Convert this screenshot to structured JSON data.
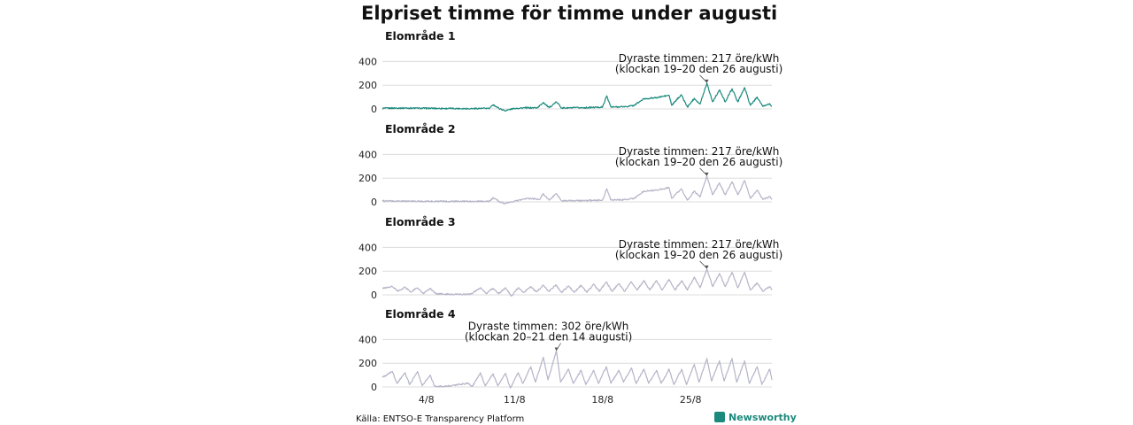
{
  "title": "Elpriset timme för timme under augusti",
  "source": "Källa: ENTSO-E Transparency Platform",
  "brand": "Newsworthy",
  "colors": {
    "highlight": "#1b8a7d",
    "muted": "#b4b4c8",
    "grid": "#dcdcdc",
    "annotation_line": "#555555"
  },
  "chart_data": [
    {
      "type": "line",
      "title": "Elområde 1",
      "color": "#1b8a7d",
      "x_ticks": [
        "4/8",
        "11/8",
        "18/8",
        "25/8"
      ],
      "y_ticks": [
        0,
        200,
        400
      ],
      "ylim": [
        -30,
        420
      ],
      "xlim": [
        "2022-08-01 00:00",
        "2022-08-31 23:00"
      ],
      "resolution": "hourly",
      "annotation": {
        "line1": "Dyraste timmen: 217 öre/kWh",
        "line2": "(klockan 19–20 den 26 augusti)",
        "x": "2022-08-26 19:00",
        "y": 217
      },
      "keypoints": [
        [
          "2022-08-01 00:00",
          5
        ],
        [
          "2022-08-02 12:00",
          8
        ],
        [
          "2022-08-04 00:00",
          6
        ],
        [
          "2022-08-06 00:00",
          4
        ],
        [
          "2022-08-08 00:00",
          3
        ],
        [
          "2022-08-09 12:00",
          5
        ],
        [
          "2022-08-09 20:00",
          35
        ],
        [
          "2022-08-10 06:00",
          5
        ],
        [
          "2022-08-10 18:00",
          -15
        ],
        [
          "2022-08-11 12:00",
          5
        ],
        [
          "2022-08-12 00:00",
          8
        ],
        [
          "2022-08-13 08:00",
          10
        ],
        [
          "2022-08-13 19:00",
          55
        ],
        [
          "2022-08-14 06:00",
          10
        ],
        [
          "2022-08-14 20:00",
          60
        ],
        [
          "2022-08-15 06:00",
          8
        ],
        [
          "2022-08-17 00:00",
          10
        ],
        [
          "2022-08-18 12:00",
          15
        ],
        [
          "2022-08-18 20:00",
          110
        ],
        [
          "2022-08-19 04:00",
          15
        ],
        [
          "2022-08-20 12:00",
          20
        ],
        [
          "2022-08-21 00:00",
          30
        ],
        [
          "2022-08-21 19:00",
          85
        ],
        [
          "2022-08-22 19:00",
          95
        ],
        [
          "2022-08-23 19:00",
          115
        ],
        [
          "2022-08-24 00:00",
          30
        ],
        [
          "2022-08-24 18:00",
          120
        ],
        [
          "2022-08-25 06:00",
          15
        ],
        [
          "2022-08-25 19:00",
          90
        ],
        [
          "2022-08-26 06:00",
          40
        ],
        [
          "2022-08-26 19:00",
          217
        ],
        [
          "2022-08-27 06:00",
          60
        ],
        [
          "2022-08-27 19:00",
          160
        ],
        [
          "2022-08-28 06:00",
          60
        ],
        [
          "2022-08-28 19:00",
          170
        ],
        [
          "2022-08-29 06:00",
          60
        ],
        [
          "2022-08-29 19:00",
          180
        ],
        [
          "2022-08-30 06:00",
          30
        ],
        [
          "2022-08-30 19:00",
          100
        ],
        [
          "2022-08-31 06:00",
          20
        ],
        [
          "2022-08-31 19:00",
          45
        ],
        [
          "2022-08-31 23:00",
          20
        ]
      ]
    },
    {
      "type": "line",
      "title": "Elområde 2",
      "color": "#b4b4c8",
      "x_ticks": [
        "4/8",
        "11/8",
        "18/8",
        "25/8"
      ],
      "y_ticks": [
        0,
        200,
        400
      ],
      "ylim": [
        -30,
        420
      ],
      "xlim": [
        "2022-08-01 00:00",
        "2022-08-31 23:00"
      ],
      "resolution": "hourly",
      "annotation": {
        "line1": "Dyraste timmen: 217 öre/kWh",
        "line2": "(klockan 19–20 den 26 augusti)",
        "x": "2022-08-26 19:00",
        "y": 217
      },
      "keypoints": [
        [
          "2022-08-01 00:00",
          8
        ],
        [
          "2022-08-03 00:00",
          6
        ],
        [
          "2022-08-05 00:00",
          5
        ],
        [
          "2022-08-07 00:00",
          4
        ],
        [
          "2022-08-09 12:00",
          5
        ],
        [
          "2022-08-09 20:00",
          35
        ],
        [
          "2022-08-10 06:00",
          5
        ],
        [
          "2022-08-10 18:00",
          -15
        ],
        [
          "2022-08-11 12:00",
          5
        ],
        [
          "2022-08-12 12:00",
          30
        ],
        [
          "2022-08-13 12:00",
          20
        ],
        [
          "2022-08-13 19:00",
          70
        ],
        [
          "2022-08-14 06:00",
          15
        ],
        [
          "2022-08-14 20:00",
          70
        ],
        [
          "2022-08-15 06:00",
          10
        ],
        [
          "2022-08-17 00:00",
          10
        ],
        [
          "2022-08-18 12:00",
          15
        ],
        [
          "2022-08-18 20:00",
          110
        ],
        [
          "2022-08-19 04:00",
          15
        ],
        [
          "2022-08-20 12:00",
          20
        ],
        [
          "2022-08-21 00:00",
          30
        ],
        [
          "2022-08-21 19:00",
          90
        ],
        [
          "2022-08-22 19:00",
          100
        ],
        [
          "2022-08-23 19:00",
          120
        ],
        [
          "2022-08-24 00:00",
          30
        ],
        [
          "2022-08-24 18:00",
          110
        ],
        [
          "2022-08-25 06:00",
          15
        ],
        [
          "2022-08-25 19:00",
          90
        ],
        [
          "2022-08-26 06:00",
          40
        ],
        [
          "2022-08-26 19:00",
          217
        ],
        [
          "2022-08-27 06:00",
          60
        ],
        [
          "2022-08-27 19:00",
          160
        ],
        [
          "2022-08-28 06:00",
          60
        ],
        [
          "2022-08-28 19:00",
          170
        ],
        [
          "2022-08-29 06:00",
          60
        ],
        [
          "2022-08-29 19:00",
          180
        ],
        [
          "2022-08-30 06:00",
          30
        ],
        [
          "2022-08-30 19:00",
          100
        ],
        [
          "2022-08-31 06:00",
          20
        ],
        [
          "2022-08-31 19:00",
          45
        ],
        [
          "2022-08-31 23:00",
          20
        ]
      ]
    },
    {
      "type": "line",
      "title": "Elområde 3",
      "color": "#b4b4c8",
      "x_ticks": [
        "4/8",
        "11/8",
        "18/8",
        "25/8"
      ],
      "y_ticks": [
        0,
        200,
        400
      ],
      "ylim": [
        -30,
        420
      ],
      "xlim": [
        "2022-08-01 00:00",
        "2022-08-31 23:00"
      ],
      "resolution": "hourly",
      "annotation": {
        "line1": "Dyraste timmen: 217 öre/kWh",
        "line2": "(klockan 19–20 den 26 augusti)",
        "x": "2022-08-26 19:00",
        "y": 217
      },
      "keypoints": [
        [
          "2022-08-01 00:00",
          55
        ],
        [
          "2022-08-01 19:00",
          70
        ],
        [
          "2022-08-02 06:00",
          30
        ],
        [
          "2022-08-02 19:00",
          65
        ],
        [
          "2022-08-03 06:00",
          25
        ],
        [
          "2022-08-03 19:00",
          60
        ],
        [
          "2022-08-04 06:00",
          10
        ],
        [
          "2022-08-04 19:00",
          55
        ],
        [
          "2022-08-05 06:00",
          10
        ],
        [
          "2022-08-06 00:00",
          5
        ],
        [
          "2022-08-08 00:00",
          5
        ],
        [
          "2022-08-08 19:00",
          60
        ],
        [
          "2022-08-09 06:00",
          10
        ],
        [
          "2022-08-09 19:00",
          55
        ],
        [
          "2022-08-10 06:00",
          10
        ],
        [
          "2022-08-10 19:00",
          60
        ],
        [
          "2022-08-11 06:00",
          -10
        ],
        [
          "2022-08-11 19:00",
          60
        ],
        [
          "2022-08-12 06:00",
          20
        ],
        [
          "2022-08-12 19:00",
          70
        ],
        [
          "2022-08-13 06:00",
          25
        ],
        [
          "2022-08-13 19:00",
          80
        ],
        [
          "2022-08-14 06:00",
          30
        ],
        [
          "2022-08-14 19:00",
          85
        ],
        [
          "2022-08-15 06:00",
          20
        ],
        [
          "2022-08-15 19:00",
          75
        ],
        [
          "2022-08-16 06:00",
          20
        ],
        [
          "2022-08-16 19:00",
          80
        ],
        [
          "2022-08-17 06:00",
          20
        ],
        [
          "2022-08-17 19:00",
          90
        ],
        [
          "2022-08-18 06:00",
          30
        ],
        [
          "2022-08-18 19:00",
          110
        ],
        [
          "2022-08-19 06:00",
          30
        ],
        [
          "2022-08-19 19:00",
          95
        ],
        [
          "2022-08-20 06:00",
          30
        ],
        [
          "2022-08-20 19:00",
          110
        ],
        [
          "2022-08-21 06:00",
          40
        ],
        [
          "2022-08-21 19:00",
          120
        ],
        [
          "2022-08-22 06:00",
          40
        ],
        [
          "2022-08-22 19:00",
          120
        ],
        [
          "2022-08-23 06:00",
          40
        ],
        [
          "2022-08-23 19:00",
          130
        ],
        [
          "2022-08-24 06:00",
          40
        ],
        [
          "2022-08-24 19:00",
          120
        ],
        [
          "2022-08-25 06:00",
          40
        ],
        [
          "2022-08-25 19:00",
          150
        ],
        [
          "2022-08-26 06:00",
          60
        ],
        [
          "2022-08-26 19:00",
          217
        ],
        [
          "2022-08-27 06:00",
          70
        ],
        [
          "2022-08-27 19:00",
          180
        ],
        [
          "2022-08-28 06:00",
          70
        ],
        [
          "2022-08-28 19:00",
          190
        ],
        [
          "2022-08-29 06:00",
          60
        ],
        [
          "2022-08-29 19:00",
          190
        ],
        [
          "2022-08-30 06:00",
          40
        ],
        [
          "2022-08-30 19:00",
          100
        ],
        [
          "2022-08-31 06:00",
          30
        ],
        [
          "2022-08-31 19:00",
          70
        ],
        [
          "2022-08-31 23:00",
          40
        ]
      ]
    },
    {
      "type": "line",
      "title": "Elområde 4",
      "color": "#b4b4c8",
      "x_ticks": [
        "4/8",
        "11/8",
        "18/8",
        "25/8"
      ],
      "y_ticks": [
        0,
        200,
        400
      ],
      "ylim": [
        -30,
        420
      ],
      "xlim": [
        "2022-08-01 00:00",
        "2022-08-31 23:00"
      ],
      "resolution": "hourly",
      "annotation": {
        "line1": "Dyraste timmen: 302 öre/kWh",
        "line2": "(klockan 20–21 den 14 augusti)",
        "x": "2022-08-14 20:00",
        "y": 302
      },
      "keypoints": [
        [
          "2022-08-01 00:00",
          80
        ],
        [
          "2022-08-01 19:00",
          130
        ],
        [
          "2022-08-02 04:00",
          30
        ],
        [
          "2022-08-02 19:00",
          120
        ],
        [
          "2022-08-03 04:00",
          20
        ],
        [
          "2022-08-03 19:00",
          130
        ],
        [
          "2022-08-04 04:00",
          10
        ],
        [
          "2022-08-04 19:00",
          100
        ],
        [
          "2022-08-05 04:00",
          5
        ],
        [
          "2022-08-06 00:00",
          5
        ],
        [
          "2022-08-07 19:00",
          30
        ],
        [
          "2022-08-08 04:00",
          5
        ],
        [
          "2022-08-08 19:00",
          120
        ],
        [
          "2022-08-09 04:00",
          10
        ],
        [
          "2022-08-09 19:00",
          110
        ],
        [
          "2022-08-10 04:00",
          10
        ],
        [
          "2022-08-10 19:00",
          115
        ],
        [
          "2022-08-11 04:00",
          -10
        ],
        [
          "2022-08-11 19:00",
          120
        ],
        [
          "2022-08-12 04:00",
          30
        ],
        [
          "2022-08-12 19:00",
          170
        ],
        [
          "2022-08-13 04:00",
          40
        ],
        [
          "2022-08-13 19:00",
          250
        ],
        [
          "2022-08-14 04:00",
          60
        ],
        [
          "2022-08-14 20:00",
          302
        ],
        [
          "2022-08-15 04:00",
          40
        ],
        [
          "2022-08-15 19:00",
          150
        ],
        [
          "2022-08-16 04:00",
          30
        ],
        [
          "2022-08-16 19:00",
          140
        ],
        [
          "2022-08-17 04:00",
          20
        ],
        [
          "2022-08-17 19:00",
          140
        ],
        [
          "2022-08-18 04:00",
          30
        ],
        [
          "2022-08-18 19:00",
          170
        ],
        [
          "2022-08-19 04:00",
          30
        ],
        [
          "2022-08-19 19:00",
          140
        ],
        [
          "2022-08-20 04:00",
          40
        ],
        [
          "2022-08-20 19:00",
          160
        ],
        [
          "2022-08-21 04:00",
          30
        ],
        [
          "2022-08-21 19:00",
          150
        ],
        [
          "2022-08-22 04:00",
          30
        ],
        [
          "2022-08-22 19:00",
          140
        ],
        [
          "2022-08-23 04:00",
          30
        ],
        [
          "2022-08-23 19:00",
          150
        ],
        [
          "2022-08-24 04:00",
          20
        ],
        [
          "2022-08-24 19:00",
          150
        ],
        [
          "2022-08-25 04:00",
          20
        ],
        [
          "2022-08-25 19:00",
          190
        ],
        [
          "2022-08-26 04:00",
          40
        ],
        [
          "2022-08-26 19:00",
          240
        ],
        [
          "2022-08-27 04:00",
          50
        ],
        [
          "2022-08-27 19:00",
          220
        ],
        [
          "2022-08-28 04:00",
          50
        ],
        [
          "2022-08-28 19:00",
          240
        ],
        [
          "2022-08-29 04:00",
          40
        ],
        [
          "2022-08-29 19:00",
          220
        ],
        [
          "2022-08-30 04:00",
          30
        ],
        [
          "2022-08-30 19:00",
          170
        ],
        [
          "2022-08-31 04:00",
          20
        ],
        [
          "2022-08-31 19:00",
          150
        ],
        [
          "2022-08-31 23:00",
          60
        ]
      ]
    }
  ]
}
